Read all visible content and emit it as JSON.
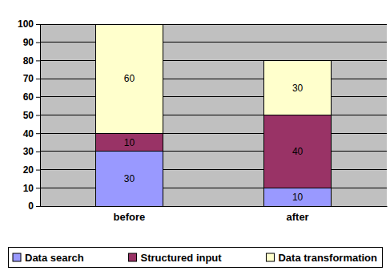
{
  "chart_data": {
    "type": "bar",
    "categories": [
      "before",
      "after"
    ],
    "series": [
      {
        "name": "Data search",
        "color": "#9999ff",
        "values": [
          30,
          10
        ]
      },
      {
        "name": "Structured input",
        "color": "#993366",
        "values": [
          10,
          40
        ]
      },
      {
        "name": "Data transformation",
        "color": "#ffffcc",
        "values": [
          60,
          30
        ]
      }
    ],
    "ylim": [
      0,
      100
    ],
    "yticks": [
      0,
      10,
      20,
      30,
      40,
      50,
      60,
      70,
      80,
      90,
      100
    ],
    "grid": true,
    "stacked": true,
    "data_labels": true,
    "legend": "bottom"
  }
}
